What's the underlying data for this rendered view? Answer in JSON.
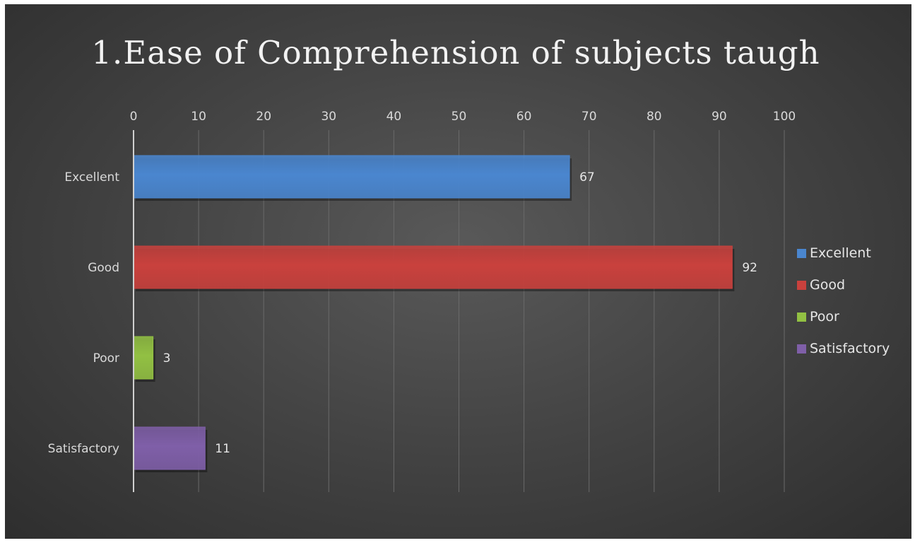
{
  "chart_data": {
    "type": "bar",
    "orientation": "horizontal",
    "title": "1.Ease of Comprehension of subjects taugh",
    "categories": [
      "Excellent",
      "Good",
      "Poor",
      "Satisfactory"
    ],
    "values": [
      67,
      92,
      3,
      11
    ],
    "colors": [
      "#4a86cf",
      "#c9413d",
      "#92c043",
      "#7f5fa8"
    ],
    "xlim": [
      0,
      100
    ],
    "xticks": [
      0,
      10,
      20,
      30,
      40,
      50,
      60,
      70,
      80,
      90,
      100
    ],
    "xlabel": "",
    "ylabel": "",
    "grid": true,
    "legend": {
      "position": "right",
      "entries": [
        "Excellent",
        "Good",
        "Poor",
        "Satisfactory"
      ]
    }
  }
}
